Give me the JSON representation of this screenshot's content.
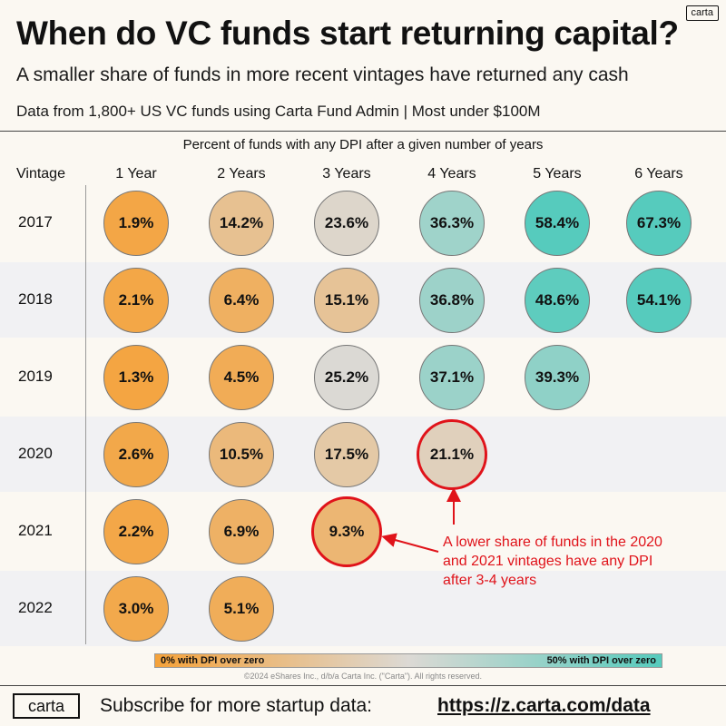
{
  "brand_tag": "carta",
  "title": "When do VC funds start returning capital?",
  "subtitle": "A smaller share of funds in more recent vintages have returned any cash",
  "source": "Data from 1,800+ US VC funds using Carta Fund Admin | Most under $100M",
  "chart_data": {
    "type": "table",
    "title": "Percent of funds with any DPI after a given number of years",
    "row_header": "Vintage",
    "columns": [
      "1 Year",
      "2 Years",
      "3 Years",
      "4 Years",
      "5 Years",
      "6 Years"
    ],
    "rows": [
      {
        "vintage": "2017",
        "values": [
          1.9,
          14.2,
          23.6,
          36.3,
          58.4,
          67.3
        ]
      },
      {
        "vintage": "2018",
        "values": [
          2.1,
          6.4,
          15.1,
          36.8,
          48.6,
          54.1
        ]
      },
      {
        "vintage": "2019",
        "values": [
          1.3,
          4.5,
          25.2,
          37.1,
          39.3,
          null
        ]
      },
      {
        "vintage": "2020",
        "values": [
          2.6,
          10.5,
          17.5,
          21.1,
          null,
          null
        ]
      },
      {
        "vintage": "2021",
        "values": [
          2.2,
          6.9,
          9.3,
          null,
          null,
          null
        ]
      },
      {
        "vintage": "2022",
        "values": [
          3.0,
          5.1,
          null,
          null,
          null,
          null
        ]
      }
    ],
    "highlighted": [
      {
        "vintage": "2020",
        "column": "4 Years"
      },
      {
        "vintage": "2021",
        "column": "3 Years"
      }
    ],
    "color_scale": {
      "low": "#f5a23a",
      "mid": "#dcd9d4",
      "high": "#56cbbd",
      "min": 0,
      "max": 50
    },
    "legend": {
      "left": "0% with DPI over zero",
      "right": "50% with DPI over zero"
    },
    "annotation": "A lower share of funds in the 2020 and 2021 vintages have any DPI after 3-4 years"
  },
  "copyright": "©2024 eShares Inc., d/b/a Carta Inc. (\"Carta\"). All rights reserved.",
  "footer": {
    "logo": "carta",
    "text": "Subscribe for more startup data:",
    "link": "https://z.carta.com/data"
  },
  "colors": {
    "highlight": "#e0131a",
    "band": "#f1f1f3"
  }
}
